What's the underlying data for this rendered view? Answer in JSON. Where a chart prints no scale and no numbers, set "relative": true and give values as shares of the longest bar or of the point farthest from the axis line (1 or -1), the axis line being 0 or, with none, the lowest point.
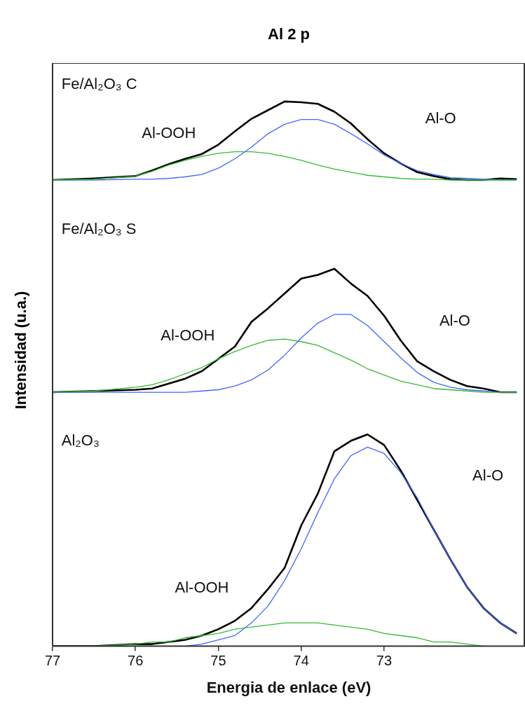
{
  "chart_data": [
    {
      "type": "line",
      "title": "Al 2 p",
      "relative": true,
      "tick_labels": false,
      "xlim": [
        77,
        71.3
      ],
      "xticks": [
        77,
        76,
        75,
        74,
        73
      ],
      "x": [
        77,
        76.5,
        76,
        75.8,
        75.6,
        75.4,
        75.2,
        75.0,
        74.8,
        74.6,
        74.4,
        74.2,
        74.0,
        73.8,
        73.6,
        73.4,
        73.2,
        73.0,
        72.8,
        72.6,
        72.4,
        72.2,
        72.0,
        71.8,
        71.6,
        71.4
      ],
      "series": [
        {
          "color": "#000000",
          "values": [
            0,
            0.02,
            0.05,
            0.12,
            0.2,
            0.27,
            0.33,
            0.45,
            0.62,
            0.78,
            0.89,
            1.0,
            0.99,
            0.97,
            0.87,
            0.72,
            0.52,
            0.34,
            0.21,
            0.1,
            0.05,
            0.01,
            0,
            0,
            0.02,
            0.01
          ]
        },
        {
          "color": "#4466ff",
          "values": [
            0,
            0,
            0.01,
            0.01,
            0.02,
            0.04,
            0.07,
            0.15,
            0.27,
            0.42,
            0.59,
            0.71,
            0.77,
            0.77,
            0.71,
            0.59,
            0.46,
            0.32,
            0.21,
            0.12,
            0.07,
            0.03,
            0.02,
            0.01,
            0,
            0
          ]
        },
        {
          "color": "#33bb33",
          "values": [
            0,
            0.01,
            0.05,
            0.11,
            0.19,
            0.25,
            0.3,
            0.34,
            0.36,
            0.36,
            0.34,
            0.3,
            0.25,
            0.19,
            0.14,
            0.1,
            0.06,
            0.04,
            0.02,
            0.01,
            0.01,
            0,
            0,
            0,
            0,
            0
          ]
        }
      ],
      "annotations": [
        "Fe/Al₂O₃ C",
        "Al-OOH",
        "Al-O"
      ]
    },
    {
      "type": "line",
      "ylabel": "Intensidad (u.a.)",
      "relative": true,
      "tick_labels": false,
      "xlim": [
        77,
        71.3
      ],
      "xticks": [
        77,
        76,
        75,
        74,
        73
      ],
      "x": [
        77,
        76.5,
        76,
        75.8,
        75.6,
        75.4,
        75.2,
        75.0,
        74.8,
        74.6,
        74.4,
        74.2,
        74.0,
        73.8,
        73.6,
        73.4,
        73.2,
        73.0,
        72.8,
        72.6,
        72.4,
        72.2,
        72.0,
        71.8,
        71.6,
        71.4
      ],
      "series": [
        {
          "color": "#000000",
          "values": [
            0,
            0.01,
            0.02,
            0.03,
            0.07,
            0.11,
            0.17,
            0.27,
            0.37,
            0.57,
            0.68,
            0.8,
            0.92,
            0.95,
            1.0,
            0.88,
            0.78,
            0.62,
            0.42,
            0.25,
            0.17,
            0.1,
            0.05,
            0.03,
            0,
            0
          ]
        },
        {
          "color": "#4466ff",
          "values": [
            0,
            0,
            0,
            0,
            0,
            0,
            0.01,
            0.02,
            0.05,
            0.1,
            0.18,
            0.3,
            0.44,
            0.56,
            0.63,
            0.63,
            0.54,
            0.41,
            0.28,
            0.16,
            0.08,
            0.04,
            0.02,
            0.01,
            0,
            0
          ]
        },
        {
          "color": "#33bb33",
          "values": [
            0,
            0.01,
            0.04,
            0.06,
            0.1,
            0.15,
            0.2,
            0.27,
            0.33,
            0.38,
            0.42,
            0.43,
            0.41,
            0.38,
            0.32,
            0.26,
            0.19,
            0.14,
            0.09,
            0.06,
            0.03,
            0.02,
            0.01,
            0,
            0,
            0
          ]
        }
      ],
      "annotations": [
        "Fe/Al₂O₃ S",
        "Al-OOH",
        "Al-O"
      ]
    },
    {
      "type": "line",
      "xlabel": "Energia de enlace (eV)",
      "relative": true,
      "tick_labels": "x",
      "xlim": [
        77,
        71.3
      ],
      "xticks": [
        77,
        76,
        75,
        74,
        73
      ],
      "x": [
        77,
        76.5,
        76,
        75.8,
        75.6,
        75.4,
        75.2,
        75.0,
        74.8,
        74.6,
        74.4,
        74.2,
        74.0,
        73.8,
        73.6,
        73.4,
        73.2,
        73.0,
        72.8,
        72.6,
        72.4,
        72.2,
        72.0,
        71.8,
        71.6,
        71.4
      ],
      "series": [
        {
          "color": "#000000",
          "values": [
            0,
            0,
            0.01,
            0.01,
            0.02,
            0.03,
            0.05,
            0.08,
            0.12,
            0.18,
            0.27,
            0.37,
            0.57,
            0.72,
            0.92,
            0.97,
            1.0,
            0.95,
            0.83,
            0.69,
            0.55,
            0.41,
            0.28,
            0.18,
            0.11,
            0.06
          ]
        },
        {
          "color": "#4466ff",
          "values": [
            null,
            null,
            null,
            null,
            0,
            0,
            0.01,
            0.03,
            0.05,
            0.11,
            0.19,
            0.31,
            0.46,
            0.63,
            0.79,
            0.9,
            0.94,
            0.91,
            0.82,
            0.7,
            0.55,
            0.41,
            0.28,
            0.18,
            0.11,
            0.06
          ]
        },
        {
          "color": "#33bb33",
          "values": [
            0,
            0,
            0.01,
            0.02,
            0.02,
            0.04,
            0.05,
            0.06,
            0.08,
            0.09,
            0.1,
            0.11,
            0.11,
            0.11,
            0.1,
            0.09,
            0.08,
            0.06,
            0.05,
            0.04,
            0.02,
            0.02,
            0.01,
            0,
            0,
            0
          ]
        }
      ],
      "annotations": [
        "Al₂O₃",
        "Al-OOH",
        "Al-O"
      ]
    }
  ]
}
